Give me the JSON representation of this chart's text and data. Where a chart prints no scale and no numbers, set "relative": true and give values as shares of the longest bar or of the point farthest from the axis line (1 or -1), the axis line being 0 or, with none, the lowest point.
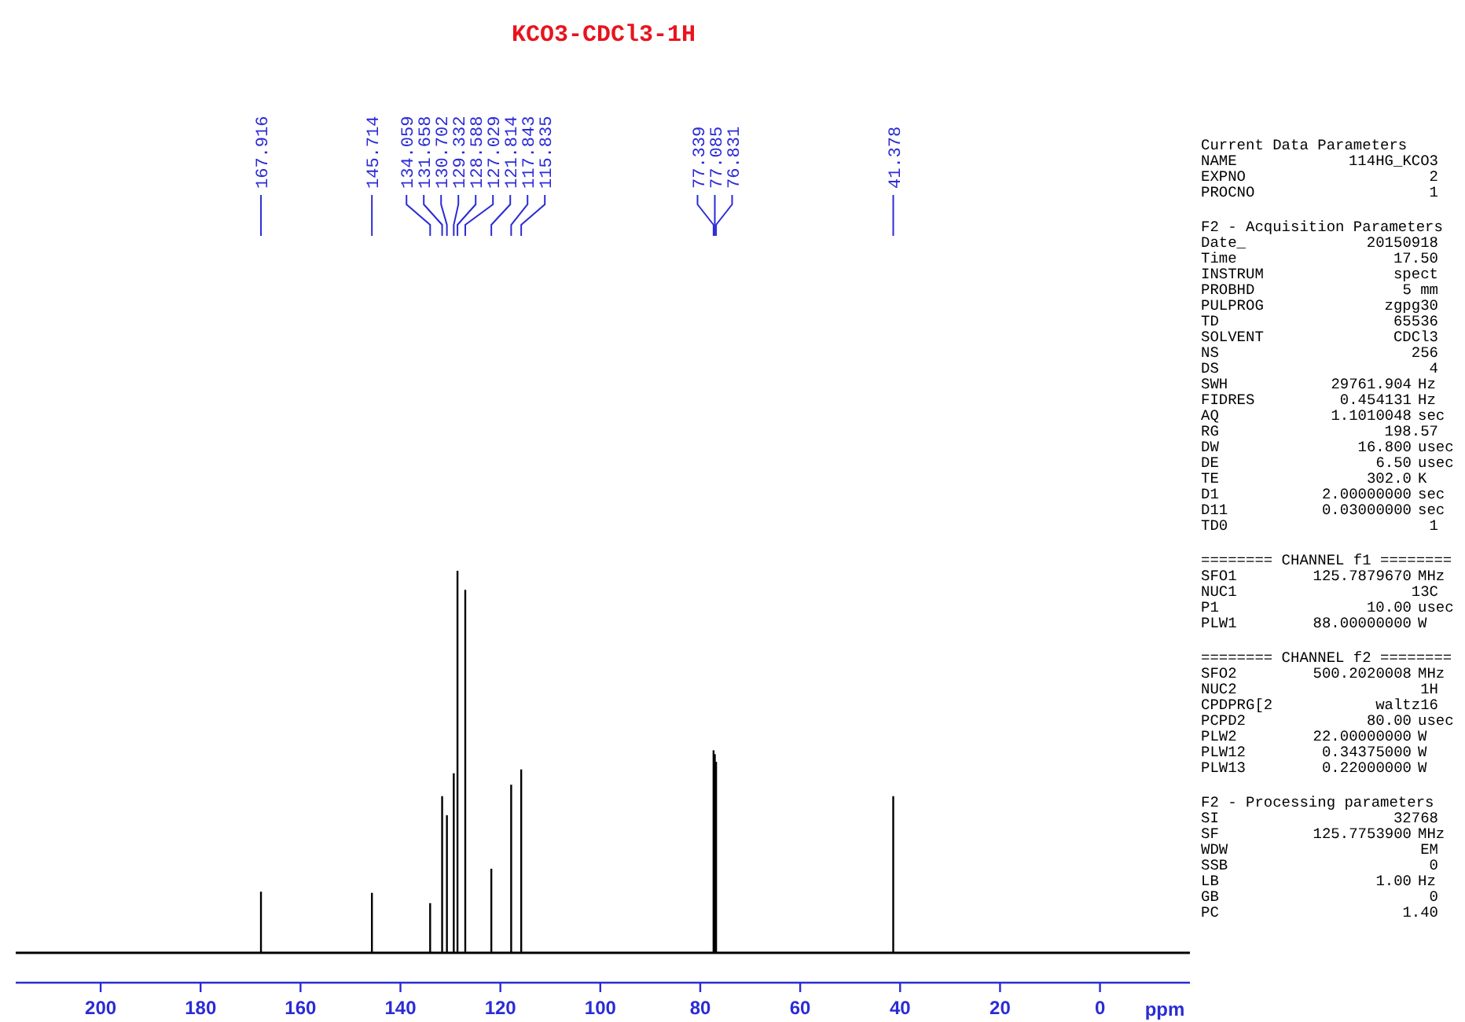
{
  "chart_data": {
    "type": "bar",
    "title": "KCO3-CDCl3-1H",
    "xlabel": "ppm",
    "relative": true,
    "xlim": [
      217,
      -18
    ],
    "xticks": [
      200,
      180,
      160,
      140,
      120,
      100,
      80,
      60,
      40,
      20,
      0
    ],
    "series": [
      {
        "color": "#000000",
        "x": [
          167.916,
          145.714,
          134.059,
          131.658,
          130.702,
          129.332,
          128.588,
          127.029,
          121.814,
          117.843,
          115.835,
          77.339,
          77.085,
          76.831,
          41.378
        ],
        "values": [
          0.16,
          0.157,
          0.13,
          0.41,
          0.36,
          0.47,
          1,
          0.95,
          0.22,
          0.44,
          0.48,
          0.53,
          0.52,
          0.5,
          0.41
        ]
      }
    ],
    "annotations": [
      {
        "text": "167.916",
        "x": 167.916
      },
      {
        "text": "145.714",
        "x": 145.714
      },
      {
        "text": "134.059",
        "x": 134.059
      },
      {
        "text": "131.658",
        "x": 131.658
      },
      {
        "text": "130.702",
        "x": 130.702
      },
      {
        "text": "129.332",
        "x": 129.332
      },
      {
        "text": "128.588",
        "x": 128.588
      },
      {
        "text": "127.029",
        "x": 127.029
      },
      {
        "text": "121.814",
        "x": 121.814
      },
      {
        "text": "117.843",
        "x": 117.843
      },
      {
        "text": "115.835",
        "x": 115.835
      },
      {
        "text": "77.339",
        "x": 77.339
      },
      {
        "text": "77.085",
        "x": 77.085
      },
      {
        "text": "76.831",
        "x": 76.831
      },
      {
        "text": "41.378",
        "x": 41.378
      },
      "Current Data Parameters",
      "NAME\t114HG_KCO3",
      "EXPNO\t2",
      "PROCNO\t1",
      "F2 - Acquisition Parameters",
      "Date_\t20150918",
      "Time\t17.50",
      "INSTRUM\tspect",
      "PROBHD\t5 mm",
      "PULPROG\tzgpg30",
      "TD\t65536",
      "SOLVENT\tCDCl3",
      "NS\t256",
      "DS\t4",
      "SWH\t29761.904\tHz",
      "FIDRES\t0.454131\tHz",
      "AQ\t1.1010048\tsec",
      "RG\t198.57",
      "DW\t16.800\tusec",
      "DE\t6.50\tusec",
      "TE\t302.0\tK",
      "D1\t2.00000000\tsec",
      "D11\t0.03000000\tsec",
      "TD0\t1",
      "======== CHANNEL f1 ========",
      "SFO1\t125.7879670\tMHz",
      "NUC1\t13C",
      "P1\t10.00\tusec",
      "PLW1\t88.00000000\tW",
      "======== CHANNEL f2 ========",
      "SFO2\t500.2020008\tMHz",
      "NUC2\t1H",
      "CPDPRG[2\twaltz16",
      "PCPD2\t80.00\tusec",
      "PLW2\t22.00000000\tW",
      "PLW12\t0.34375000\tW",
      "PLW13\t0.22000000\tW",
      "F2 - Processing parameters",
      "SI\t32768",
      "SF\t125.7753900\tMHz",
      "WDW\tEM",
      "SSB\t0",
      "LB\t1.00\tHz",
      "GB\t0",
      "PC\t1.40"
    ]
  }
}
